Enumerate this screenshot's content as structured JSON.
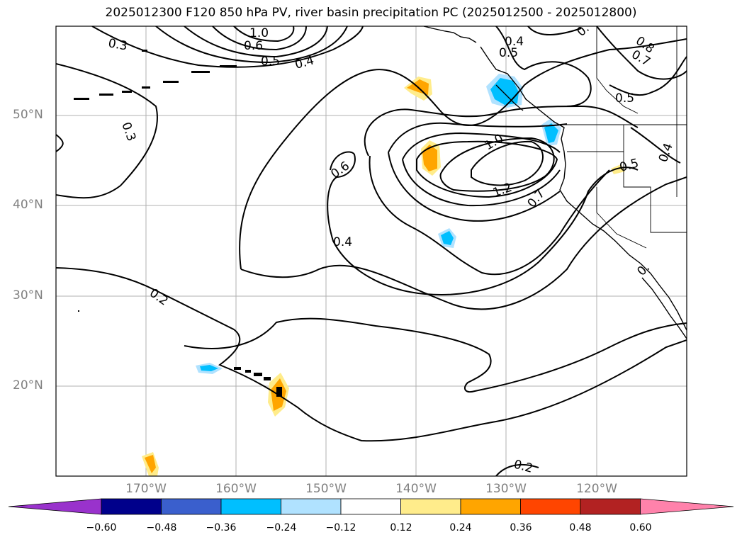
{
  "title": "2025012300 F120 850 hPa PV, river basin precipitation PC (2025012500 - 2025012800)",
  "lat_labels": [
    "50°N",
    "40°N",
    "30°N",
    "20°N"
  ],
  "lon_labels": [
    "170°W",
    "160°W",
    "150°W",
    "140°W",
    "130°W",
    "120°W"
  ],
  "contour_labels": [
    "0.3",
    "0.3",
    "1.0",
    "0.6",
    "0.5",
    "0.4",
    "0.4",
    "0.5",
    "0.",
    "0.8",
    "0.7",
    "0.5",
    "0.6",
    "1.0",
    "1.2",
    "0.7",
    "0.5",
    "0.4",
    "0.4",
    "0.2",
    "0.2",
    "0."
  ],
  "colorbar": {
    "ticks": [
      "−0.60",
      "−0.48",
      "−0.36",
      "−0.24",
      "−0.12",
      "0.12",
      "0.24",
      "0.36",
      "0.48",
      "0.60"
    ],
    "colors": [
      "#9932cc",
      "#00008b",
      "#3a5fcd",
      "#00bfff",
      "#b0e2ff",
      "#ffffff",
      "#ffec8b",
      "#ffa500",
      "#ff4500",
      "#b22222",
      "#ff82ab"
    ]
  },
  "precip_colors": {
    "positive_light": "#ffec8b",
    "positive": "#ffa500",
    "negative_light": "#b0e2ff",
    "negative": "#00bfff"
  }
}
